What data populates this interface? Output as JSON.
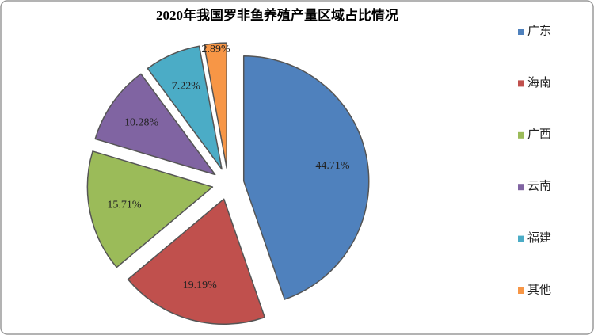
{
  "chart_data": {
    "type": "pie",
    "title": "2020年我国罗非鱼养殖产量区域占比情况",
    "categories": [
      "广东",
      "海南",
      "广西",
      "云南",
      "福建",
      "其他"
    ],
    "values": [
      44.71,
      19.19,
      15.71,
      10.28,
      7.22,
      2.89
    ],
    "value_labels": [
      "44.71%",
      "19.19%",
      "15.71%",
      "10.28%",
      "7.22%",
      "2.89%"
    ],
    "colors": [
      "#4f81bd",
      "#c0504d",
      "#9bbb59",
      "#8064a2",
      "#4bacc6",
      "#f79646"
    ],
    "legend": "right"
  }
}
